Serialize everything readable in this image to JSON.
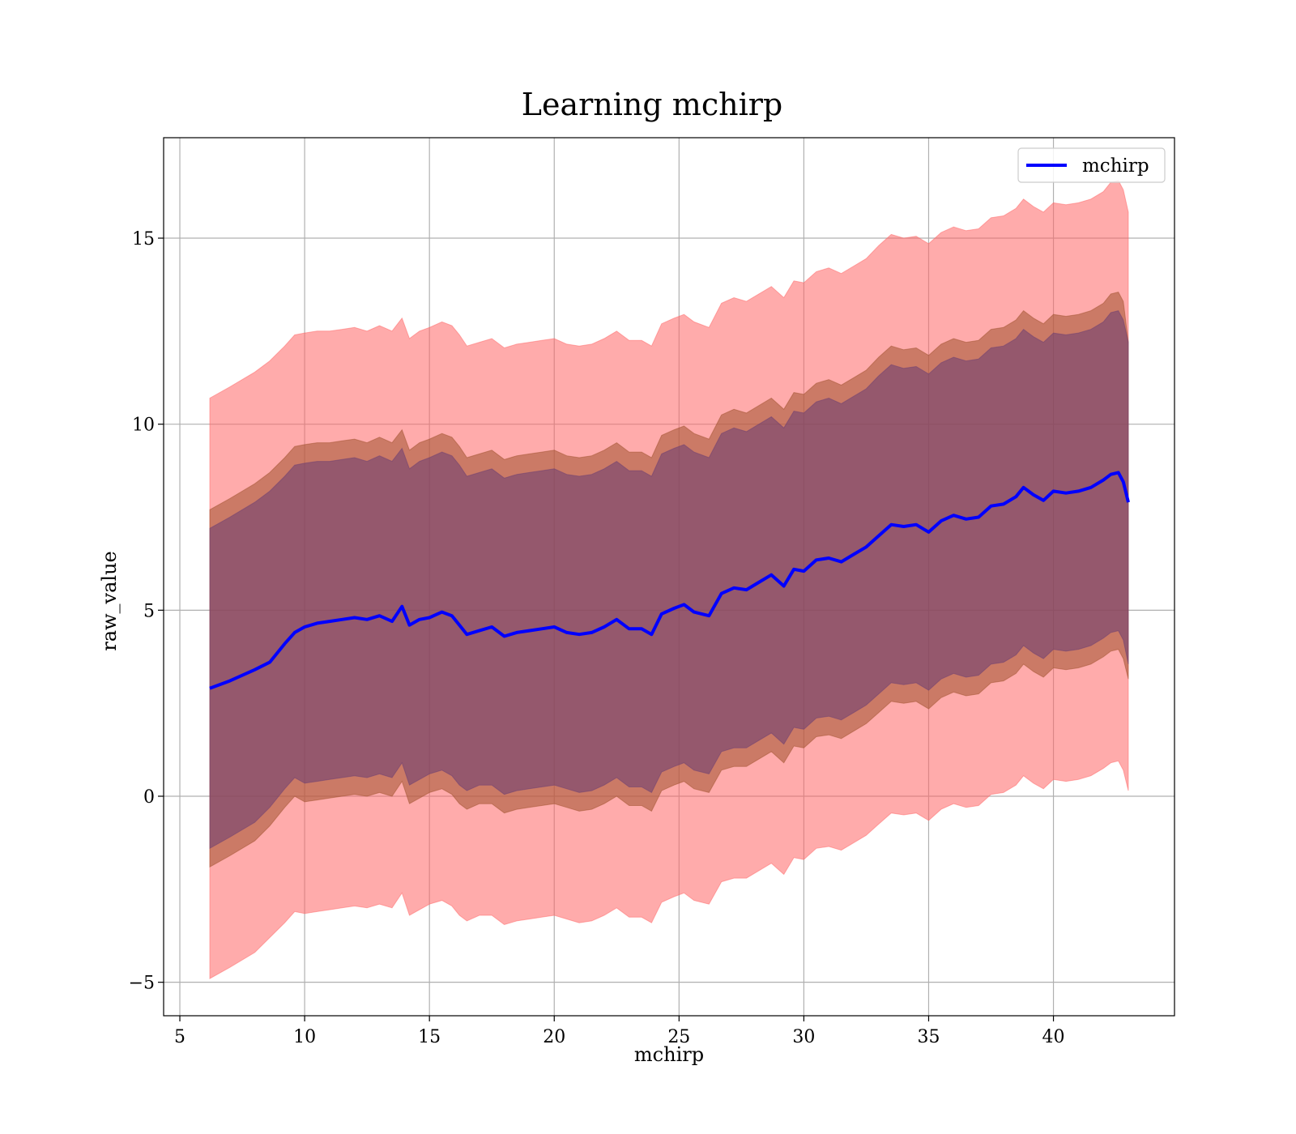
{
  "chart_data": {
    "type": "line",
    "title": "Learning mchirp",
    "xlabel": "mchirp",
    "ylabel": "raw_value",
    "xlim": [
      4.35,
      44.85
    ],
    "ylim": [
      -5.9,
      17.7
    ],
    "xticks": [
      5,
      10,
      15,
      20,
      25,
      30,
      35,
      40
    ],
    "yticks": [
      -5,
      0,
      5,
      10,
      15
    ],
    "ytick_labels": [
      "−5",
      "0",
      "5",
      "10",
      "15"
    ],
    "grid": true,
    "legend": {
      "placement": "top-right",
      "entries": [
        "mchirp"
      ]
    },
    "colors": {
      "line": "#0000ff",
      "outer_band": "#ff6666",
      "middle_band": "#a0522d",
      "inner_band": "#6a3d73",
      "grid": "#b0b0b0"
    },
    "x": [
      6.2,
      7.0,
      8.0,
      8.6,
      9.2,
      9.6,
      10.0,
      10.5,
      11.0,
      11.5,
      12.0,
      12.5,
      13.0,
      13.5,
      13.9,
      14.2,
      14.6,
      15.0,
      15.5,
      15.9,
      16.2,
      16.5,
      17.0,
      17.5,
      18.0,
      18.5,
      19.0,
      19.5,
      20.0,
      20.5,
      21.0,
      21.5,
      22.0,
      22.5,
      23.0,
      23.5,
      23.9,
      24.3,
      24.8,
      25.2,
      25.6,
      26.2,
      26.7,
      27.2,
      27.7,
      28.2,
      28.7,
      29.2,
      29.6,
      30.0,
      30.5,
      31.0,
      31.5,
      32.0,
      32.5,
      33.0,
      33.5,
      34.0,
      34.5,
      35.0,
      35.5,
      36.0,
      36.5,
      37.0,
      37.5,
      38.0,
      38.5,
      38.8,
      39.2,
      39.6,
      40.0,
      40.5,
      41.0,
      41.5,
      42.0,
      42.3,
      42.6,
      42.8,
      43.0
    ],
    "series": [
      {
        "name": "mchirp",
        "values": [
          2.9,
          3.1,
          3.4,
          3.6,
          4.1,
          4.4,
          4.55,
          4.65,
          4.7,
          4.75,
          4.8,
          4.75,
          4.85,
          4.7,
          5.1,
          4.6,
          4.75,
          4.8,
          4.95,
          4.85,
          4.6,
          4.35,
          4.45,
          4.55,
          4.3,
          4.4,
          4.45,
          4.5,
          4.55,
          4.4,
          4.35,
          4.4,
          4.55,
          4.75,
          4.5,
          4.5,
          4.35,
          4.9,
          5.05,
          5.15,
          4.95,
          4.85,
          5.45,
          5.6,
          5.55,
          5.75,
          5.95,
          5.65,
          6.1,
          6.05,
          6.35,
          6.4,
          6.3,
          6.5,
          6.7,
          7.0,
          7.3,
          7.25,
          7.3,
          7.1,
          7.4,
          7.55,
          7.45,
          7.5,
          7.8,
          7.85,
          8.05,
          8.3,
          8.1,
          7.95,
          8.2,
          8.15,
          8.2,
          8.3,
          8.5,
          8.65,
          8.7,
          8.45,
          7.9
        ]
      }
    ],
    "bands": [
      {
        "name": "outer",
        "lower": [
          -4.9,
          -4.6,
          -4.2,
          -3.8,
          -3.4,
          -3.1,
          -3.15,
          -3.1,
          -3.05,
          -3.0,
          -2.95,
          -3.0,
          -2.9,
          -3.0,
          -2.6,
          -3.2,
          -3.05,
          -2.9,
          -2.8,
          -2.95,
          -3.2,
          -3.35,
          -3.2,
          -3.2,
          -3.45,
          -3.35,
          -3.3,
          -3.25,
          -3.2,
          -3.3,
          -3.4,
          -3.35,
          -3.2,
          -3.0,
          -3.25,
          -3.25,
          -3.4,
          -2.85,
          -2.7,
          -2.6,
          -2.8,
          -2.9,
          -2.3,
          -2.2,
          -2.2,
          -2.0,
          -1.8,
          -2.1,
          -1.65,
          -1.7,
          -1.4,
          -1.35,
          -1.45,
          -1.25,
          -1.05,
          -0.75,
          -0.45,
          -0.5,
          -0.45,
          -0.65,
          -0.35,
          -0.2,
          -0.3,
          -0.25,
          0.05,
          0.1,
          0.3,
          0.55,
          0.35,
          0.2,
          0.45,
          0.4,
          0.45,
          0.55,
          0.75,
          0.9,
          0.95,
          0.7,
          0.15
        ],
        "upper": [
          10.7,
          11.0,
          11.4,
          11.7,
          12.1,
          12.4,
          12.45,
          12.5,
          12.5,
          12.55,
          12.6,
          12.5,
          12.65,
          12.5,
          12.85,
          12.3,
          12.5,
          12.6,
          12.75,
          12.65,
          12.4,
          12.1,
          12.2,
          12.3,
          12.05,
          12.15,
          12.2,
          12.25,
          12.3,
          12.15,
          12.1,
          12.15,
          12.3,
          12.5,
          12.25,
          12.25,
          12.1,
          12.7,
          12.85,
          12.95,
          12.75,
          12.6,
          13.25,
          13.4,
          13.3,
          13.5,
          13.7,
          13.4,
          13.85,
          13.8,
          14.1,
          14.2,
          14.05,
          14.25,
          14.45,
          14.8,
          15.1,
          15.0,
          15.05,
          14.85,
          15.15,
          15.3,
          15.2,
          15.25,
          15.55,
          15.6,
          15.8,
          16.05,
          15.85,
          15.7,
          15.95,
          15.9,
          15.95,
          16.05,
          16.25,
          16.5,
          16.55,
          16.3,
          15.7
        ]
      },
      {
        "name": "middle",
        "lower": [
          -1.9,
          -1.6,
          -1.2,
          -0.8,
          -0.3,
          0.0,
          -0.15,
          -0.1,
          -0.05,
          0.0,
          0.05,
          0.0,
          0.1,
          0.0,
          0.4,
          -0.2,
          -0.05,
          0.1,
          0.2,
          0.05,
          -0.2,
          -0.35,
          -0.2,
          -0.2,
          -0.45,
          -0.35,
          -0.3,
          -0.25,
          -0.2,
          -0.3,
          -0.4,
          -0.35,
          -0.2,
          0.0,
          -0.25,
          -0.25,
          -0.4,
          0.15,
          0.3,
          0.4,
          0.2,
          0.1,
          0.7,
          0.8,
          0.8,
          1.0,
          1.2,
          0.9,
          1.35,
          1.3,
          1.6,
          1.65,
          1.55,
          1.75,
          1.95,
          2.25,
          2.55,
          2.5,
          2.55,
          2.35,
          2.65,
          2.8,
          2.7,
          2.75,
          3.05,
          3.1,
          3.3,
          3.55,
          3.35,
          3.2,
          3.45,
          3.4,
          3.45,
          3.55,
          3.75,
          3.9,
          3.95,
          3.7,
          3.15
        ],
        "upper": [
          7.7,
          8.0,
          8.4,
          8.7,
          9.1,
          9.4,
          9.45,
          9.5,
          9.5,
          9.55,
          9.6,
          9.5,
          9.65,
          9.5,
          9.85,
          9.3,
          9.5,
          9.6,
          9.75,
          9.65,
          9.4,
          9.1,
          9.2,
          9.3,
          9.05,
          9.15,
          9.2,
          9.25,
          9.3,
          9.15,
          9.1,
          9.15,
          9.3,
          9.5,
          9.25,
          9.25,
          9.1,
          9.7,
          9.85,
          9.95,
          9.75,
          9.6,
          10.25,
          10.4,
          10.3,
          10.5,
          10.7,
          10.4,
          10.85,
          10.8,
          11.1,
          11.2,
          11.05,
          11.25,
          11.45,
          11.8,
          12.1,
          12.0,
          12.05,
          11.85,
          12.15,
          12.3,
          12.2,
          12.25,
          12.55,
          12.6,
          12.8,
          13.05,
          12.85,
          12.7,
          12.95,
          12.9,
          12.95,
          13.05,
          13.25,
          13.5,
          13.55,
          13.3,
          12.2
        ]
      },
      {
        "name": "inner",
        "lower": [
          -1.4,
          -1.1,
          -0.7,
          -0.3,
          0.2,
          0.5,
          0.35,
          0.4,
          0.45,
          0.5,
          0.55,
          0.5,
          0.6,
          0.5,
          0.9,
          0.3,
          0.45,
          0.6,
          0.7,
          0.55,
          0.3,
          0.15,
          0.3,
          0.3,
          0.05,
          0.15,
          0.2,
          0.25,
          0.3,
          0.2,
          0.1,
          0.15,
          0.3,
          0.5,
          0.25,
          0.25,
          0.1,
          0.65,
          0.8,
          0.9,
          0.7,
          0.6,
          1.2,
          1.3,
          1.3,
          1.5,
          1.7,
          1.4,
          1.85,
          1.8,
          2.1,
          2.15,
          2.05,
          2.25,
          2.45,
          2.75,
          3.05,
          3.0,
          3.05,
          2.85,
          3.15,
          3.3,
          3.2,
          3.25,
          3.55,
          3.6,
          3.8,
          4.05,
          3.85,
          3.7,
          3.95,
          3.9,
          3.95,
          4.05,
          4.25,
          4.4,
          4.45,
          4.2,
          3.55
        ],
        "upper": [
          7.2,
          7.5,
          7.9,
          8.2,
          8.6,
          8.9,
          8.95,
          9.0,
          9.0,
          9.05,
          9.1,
          9.0,
          9.15,
          9.0,
          9.35,
          8.8,
          9.0,
          9.1,
          9.25,
          9.15,
          8.9,
          8.6,
          8.7,
          8.8,
          8.55,
          8.65,
          8.7,
          8.75,
          8.8,
          8.65,
          8.6,
          8.65,
          8.8,
          9.0,
          8.75,
          8.75,
          8.6,
          9.2,
          9.35,
          9.45,
          9.25,
          9.1,
          9.75,
          9.9,
          9.8,
          10.0,
          10.2,
          9.9,
          10.35,
          10.3,
          10.6,
          10.7,
          10.55,
          10.75,
          10.95,
          11.3,
          11.6,
          11.5,
          11.55,
          11.35,
          11.65,
          11.8,
          11.7,
          11.75,
          12.05,
          12.1,
          12.3,
          12.55,
          12.35,
          12.2,
          12.45,
          12.4,
          12.45,
          12.55,
          12.75,
          13.0,
          13.05,
          12.8,
          12.2
        ]
      }
    ]
  }
}
